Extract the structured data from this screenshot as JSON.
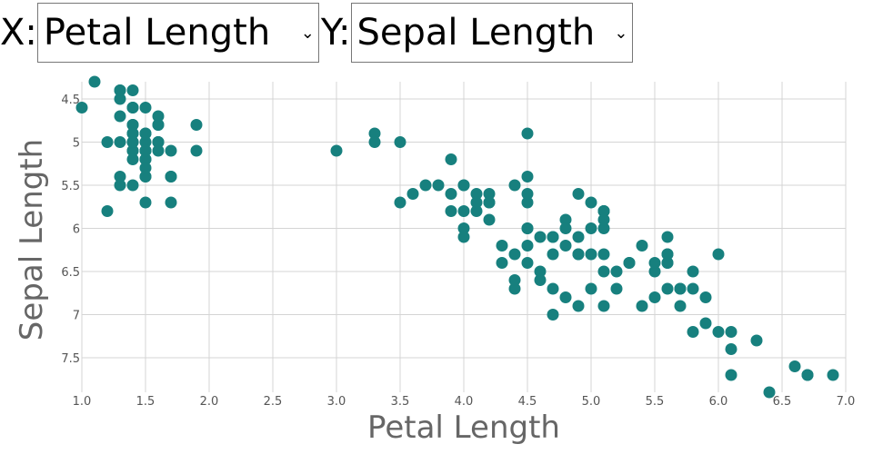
{
  "controls": {
    "x_label": "X:",
    "x_value": "Petal Length",
    "y_label": "Y:",
    "y_value": "Sepal Length"
  },
  "chart_data": {
    "type": "scatter",
    "xlabel": "Petal Length",
    "ylabel": "Sepal Length",
    "xlim": [
      1.0,
      7.0
    ],
    "ylim": [
      4.3,
      7.9
    ],
    "y_inverted": true,
    "grid": true,
    "color": "#17807e",
    "x_ticks": [
      "1.0",
      "1.5",
      "2.0",
      "2.5",
      "3.0",
      "3.5",
      "4.0",
      "4.5",
      "5.0",
      "5.5",
      "6.0",
      "6.5",
      "7.0"
    ],
    "y_ticks": [
      "4.5",
      "5",
      "5.5",
      "6",
      "6.5",
      "7",
      "7.5"
    ],
    "points": [
      [
        1.4,
        5.1
      ],
      [
        1.4,
        4.9
      ],
      [
        1.3,
        4.7
      ],
      [
        1.5,
        4.6
      ],
      [
        1.4,
        5.0
      ],
      [
        1.7,
        5.4
      ],
      [
        1.4,
        4.6
      ],
      [
        1.5,
        5.0
      ],
      [
        1.4,
        4.4
      ],
      [
        1.5,
        4.9
      ],
      [
        1.5,
        5.4
      ],
      [
        1.6,
        4.8
      ],
      [
        1.4,
        4.8
      ],
      [
        1.1,
        4.3
      ],
      [
        1.2,
        5.8
      ],
      [
        1.5,
        5.7
      ],
      [
        1.3,
        5.4
      ],
      [
        1.4,
        5.1
      ],
      [
        1.7,
        5.7
      ],
      [
        1.5,
        5.1
      ],
      [
        1.7,
        5.4
      ],
      [
        1.5,
        5.1
      ],
      [
        1.0,
        4.6
      ],
      [
        1.7,
        5.1
      ],
      [
        1.9,
        4.8
      ],
      [
        1.6,
        5.0
      ],
      [
        1.6,
        5.0
      ],
      [
        1.5,
        5.2
      ],
      [
        1.4,
        5.2
      ],
      [
        1.6,
        4.7
      ],
      [
        1.6,
        4.8
      ],
      [
        1.5,
        5.4
      ],
      [
        1.5,
        5.2
      ],
      [
        1.4,
        5.5
      ],
      [
        1.5,
        4.9
      ],
      [
        1.2,
        5.0
      ],
      [
        1.3,
        5.5
      ],
      [
        1.4,
        4.9
      ],
      [
        1.3,
        4.4
      ],
      [
        1.5,
        5.1
      ],
      [
        1.3,
        5.0
      ],
      [
        1.3,
        4.5
      ],
      [
        1.3,
        4.4
      ],
      [
        1.6,
        5.0
      ],
      [
        1.9,
        5.1
      ],
      [
        1.4,
        4.8
      ],
      [
        1.6,
        5.1
      ],
      [
        1.4,
        4.6
      ],
      [
        1.5,
        5.3
      ],
      [
        1.4,
        5.0
      ],
      [
        4.7,
        7.0
      ],
      [
        4.5,
        6.4
      ],
      [
        4.9,
        6.9
      ],
      [
        4.0,
        5.5
      ],
      [
        4.6,
        6.5
      ],
      [
        4.5,
        5.7
      ],
      [
        4.7,
        6.3
      ],
      [
        3.3,
        4.9
      ],
      [
        4.6,
        6.6
      ],
      [
        3.9,
        5.2
      ],
      [
        3.5,
        5.0
      ],
      [
        4.2,
        5.9
      ],
      [
        4.0,
        6.0
      ],
      [
        4.7,
        6.1
      ],
      [
        3.6,
        5.6
      ],
      [
        4.4,
        6.7
      ],
      [
        4.5,
        5.6
      ],
      [
        4.1,
        5.8
      ],
      [
        4.5,
        6.2
      ],
      [
        3.9,
        5.6
      ],
      [
        4.8,
        5.9
      ],
      [
        4.0,
        6.1
      ],
      [
        4.9,
        6.3
      ],
      [
        4.7,
        6.1
      ],
      [
        4.3,
        6.4
      ],
      [
        4.4,
        6.6
      ],
      [
        4.8,
        6.8
      ],
      [
        5.0,
        6.7
      ],
      [
        4.5,
        6.0
      ],
      [
        3.5,
        5.7
      ],
      [
        3.8,
        5.5
      ],
      [
        3.7,
        5.5
      ],
      [
        3.9,
        5.8
      ],
      [
        5.1,
        6.0
      ],
      [
        4.5,
        5.4
      ],
      [
        4.5,
        6.0
      ],
      [
        4.7,
        6.7
      ],
      [
        4.4,
        6.3
      ],
      [
        4.1,
        5.6
      ],
      [
        4.0,
        5.5
      ],
      [
        4.4,
        5.5
      ],
      [
        4.6,
        6.1
      ],
      [
        4.0,
        5.8
      ],
      [
        3.3,
        5.0
      ],
      [
        4.2,
        5.6
      ],
      [
        4.2,
        5.7
      ],
      [
        4.2,
        5.7
      ],
      [
        4.3,
        6.2
      ],
      [
        3.0,
        5.1
      ],
      [
        4.1,
        5.7
      ],
      [
        6.0,
        6.3
      ],
      [
        5.1,
        5.8
      ],
      [
        5.9,
        7.1
      ],
      [
        5.6,
        6.3
      ],
      [
        5.8,
        6.5
      ],
      [
        6.6,
        7.6
      ],
      [
        4.5,
        4.9
      ],
      [
        6.3,
        7.3
      ],
      [
        5.8,
        6.7
      ],
      [
        6.1,
        7.2
      ],
      [
        5.1,
        6.5
      ],
      [
        5.3,
        6.4
      ],
      [
        5.5,
        6.8
      ],
      [
        5.0,
        5.7
      ],
      [
        5.1,
        5.8
      ],
      [
        5.3,
        6.4
      ],
      [
        5.5,
        6.5
      ],
      [
        6.7,
        7.7
      ],
      [
        6.9,
        7.7
      ],
      [
        5.0,
        6.0
      ],
      [
        5.7,
        6.9
      ],
      [
        4.9,
        5.6
      ],
      [
        6.7,
        7.7
      ],
      [
        4.9,
        6.3
      ],
      [
        5.7,
        6.7
      ],
      [
        6.0,
        7.2
      ],
      [
        4.8,
        6.2
      ],
      [
        4.9,
        6.1
      ],
      [
        5.6,
        6.4
      ],
      [
        5.8,
        7.2
      ],
      [
        6.1,
        7.4
      ],
      [
        6.4,
        7.9
      ],
      [
        5.6,
        6.4
      ],
      [
        5.1,
        6.3
      ],
      [
        5.6,
        6.1
      ],
      [
        6.1,
        7.7
      ],
      [
        5.6,
        6.3
      ],
      [
        5.5,
        6.4
      ],
      [
        4.8,
        6.0
      ],
      [
        5.4,
        6.9
      ],
      [
        5.6,
        6.7
      ],
      [
        5.1,
        6.9
      ],
      [
        5.1,
        5.8
      ],
      [
        5.9,
        6.8
      ],
      [
        5.7,
        6.7
      ],
      [
        5.2,
        6.7
      ],
      [
        5.0,
        6.3
      ],
      [
        5.2,
        6.5
      ],
      [
        5.4,
        6.2
      ],
      [
        5.1,
        5.9
      ]
    ]
  }
}
